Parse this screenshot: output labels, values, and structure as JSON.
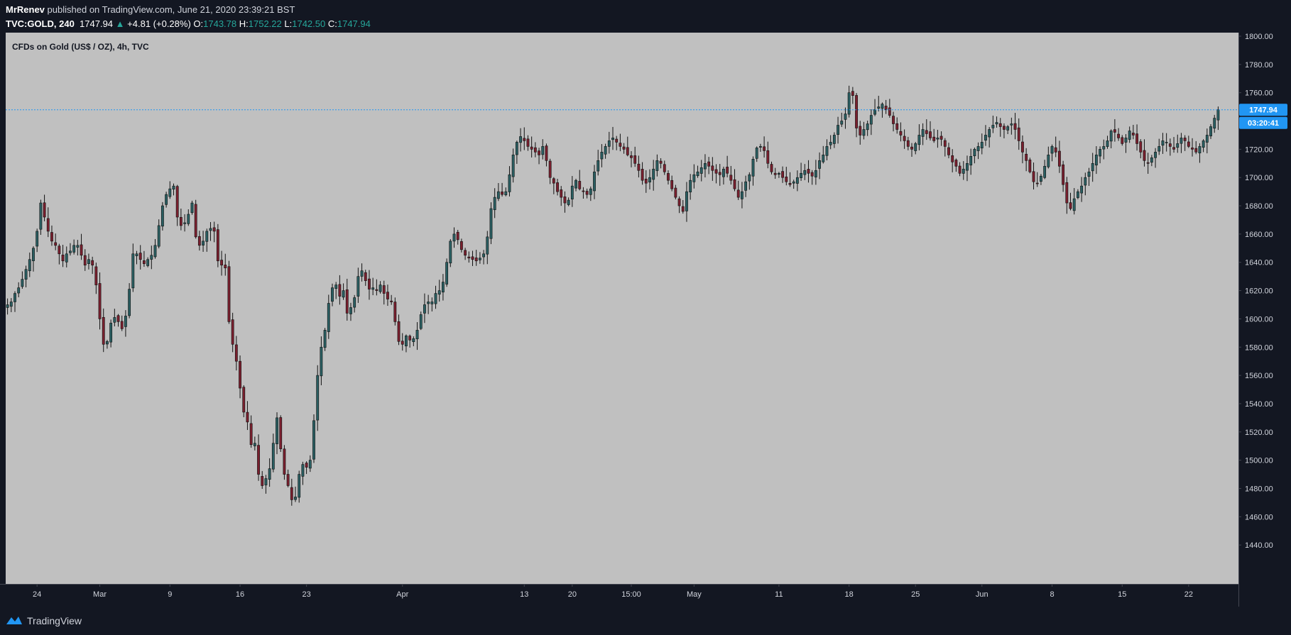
{
  "header": {
    "author": "MrRenev",
    "published_text": "published on TradingView.com, June 21, 2020 23:39:21 BST",
    "symbol": "TVC:GOLD, 240",
    "last": "1747.94",
    "change": "+4.81 (+0.28%)",
    "open_label": "O:",
    "open": "1743.78",
    "high_label": "H:",
    "high": "1752.22",
    "low_label": "L:",
    "low": "1742.50",
    "close_label": "C:",
    "close": "1747.94"
  },
  "footer": {
    "brand": "TradingView",
    "logo_icon": "tradingview-logo-icon"
  },
  "colors": {
    "background": "#131722",
    "plot_bg": "#c0c0c0",
    "candle_up": "#2a5f62",
    "candle_down": "#7a1f2e",
    "wick": "#111111",
    "price_line": "#2196f3",
    "axis_text": "#d1d4dc"
  },
  "chart_data": {
    "type": "candlestick",
    "title": "CFDs on Gold (US$ / OZ), 4h, TVC",
    "interval": "4h",
    "ylim": [
      1420,
      1800
    ],
    "y_ticks": [
      1440,
      1460,
      1480,
      1500,
      1520,
      1540,
      1560,
      1580,
      1600,
      1620,
      1640,
      1660,
      1680,
      1700,
      1720,
      1740,
      1760,
      1780,
      1800
    ],
    "y_tick_labels": [
      "1440.00",
      "1460.00",
      "1480.00",
      "1500.00",
      "1520.00",
      "1540.00",
      "1560.00",
      "1580.00",
      "1600.00",
      "1620.00",
      "1640.00",
      "1660.00",
      "1680.00",
      "1700.00",
      "1720.00",
      "1740.00",
      "1760.00",
      "1780.00",
      "1800.00"
    ],
    "x_ticks": [
      {
        "index": 8,
        "label": "24"
      },
      {
        "index": 25,
        "label": "Mar"
      },
      {
        "index": 44,
        "label": "9"
      },
      {
        "index": 63,
        "label": "16"
      },
      {
        "index": 81,
        "label": "23"
      },
      {
        "index": 107,
        "label": "Apr"
      },
      {
        "index": 140,
        "label": "13"
      },
      {
        "index": 153,
        "label": "20"
      },
      {
        "index": 169,
        "label": "15:00"
      },
      {
        "index": 186,
        "label": "May"
      },
      {
        "index": 209,
        "label": "11"
      },
      {
        "index": 228,
        "label": "18"
      },
      {
        "index": 246,
        "label": "25"
      },
      {
        "index": 264,
        "label": "Jun"
      },
      {
        "index": 283,
        "label": "8"
      },
      {
        "index": 302,
        "label": "15"
      },
      {
        "index": 320,
        "label": "22"
      }
    ],
    "x_total_slots": 334,
    "closes": [
      1610,
      1612,
      1618,
      1622,
      1628,
      1635,
      1642,
      1650,
      1662,
      1682,
      1672,
      1662,
      1655,
      1652,
      1646,
      1641,
      1646,
      1648,
      1652,
      1652,
      1645,
      1638,
      1642,
      1638,
      1624,
      1600,
      1582,
      1584,
      1597,
      1601,
      1598,
      1593,
      1602,
      1621,
      1646,
      1646,
      1642,
      1639,
      1642,
      1645,
      1652,
      1666,
      1680,
      1688,
      1692,
      1694,
      1672,
      1666,
      1668,
      1674,
      1682,
      1658,
      1652,
      1655,
      1662,
      1664,
      1662,
      1641,
      1638,
      1636,
      1598,
      1582,
      1570,
      1551,
      1534,
      1527,
      1511,
      1512,
      1490,
      1482,
      1487,
      1494,
      1512,
      1530,
      1508,
      1490,
      1482,
      1472,
      1474,
      1490,
      1497,
      1495,
      1500,
      1528,
      1560,
      1580,
      1592,
      1611,
      1622,
      1624,
      1616,
      1620,
      1604,
      1608,
      1615,
      1630,
      1634,
      1627,
      1621,
      1622,
      1620,
      1624,
      1618,
      1614,
      1612,
      1598,
      1584,
      1582,
      1588,
      1585,
      1586,
      1592,
      1603,
      1610,
      1612,
      1612,
      1618,
      1620,
      1626,
      1640,
      1655,
      1660,
      1656,
      1649,
      1645,
      1643,
      1642,
      1641,
      1643,
      1646,
      1658,
      1678,
      1686,
      1690,
      1688,
      1690,
      1702,
      1716,
      1725,
      1729,
      1726,
      1722,
      1720,
      1718,
      1716,
      1722,
      1712,
      1700,
      1696,
      1690,
      1686,
      1682,
      1684,
      1694,
      1698,
      1692,
      1690,
      1688,
      1692,
      1704,
      1712,
      1718,
      1722,
      1726,
      1728,
      1725,
      1722,
      1720,
      1716,
      1714,
      1710,
      1705,
      1698,
      1696,
      1700,
      1706,
      1712,
      1710,
      1704,
      1698,
      1692,
      1686,
      1680,
      1676,
      1690,
      1698,
      1702,
      1704,
      1707,
      1710,
      1708,
      1705,
      1703,
      1702,
      1706,
      1703,
      1698,
      1692,
      1686,
      1690,
      1697,
      1702,
      1713,
      1721,
      1722,
      1719,
      1710,
      1704,
      1702,
      1703,
      1700,
      1697,
      1695,
      1697,
      1700,
      1703,
      1705,
      1703,
      1701,
      1705,
      1712,
      1716,
      1722,
      1725,
      1730,
      1737,
      1740,
      1745,
      1760,
      1758,
      1735,
      1730,
      1734,
      1738,
      1744,
      1748,
      1750,
      1752,
      1748,
      1744,
      1738,
      1734,
      1730,
      1726,
      1722,
      1720,
      1724,
      1730,
      1734,
      1731,
      1728,
      1726,
      1728,
      1727,
      1722,
      1716,
      1711,
      1708,
      1703,
      1706,
      1710,
      1715,
      1720,
      1722,
      1725,
      1730,
      1734,
      1737,
      1739,
      1736,
      1734,
      1736,
      1738,
      1734,
      1726,
      1718,
      1712,
      1704,
      1697,
      1696,
      1701,
      1708,
      1716,
      1722,
      1718,
      1708,
      1695,
      1682,
      1678,
      1685,
      1690,
      1694,
      1700,
      1704,
      1710,
      1716,
      1720,
      1722,
      1726,
      1733,
      1732,
      1728,
      1724,
      1728,
      1733,
      1730,
      1724,
      1718,
      1712,
      1710,
      1714,
      1718,
      1722,
      1726,
      1725,
      1722,
      1720,
      1724,
      1728,
      1726,
      1722,
      1720,
      1718,
      1722,
      1726,
      1730,
      1736,
      1742,
      1747.94
    ],
    "current_price": "1747.94",
    "countdown": "03:20:41"
  }
}
